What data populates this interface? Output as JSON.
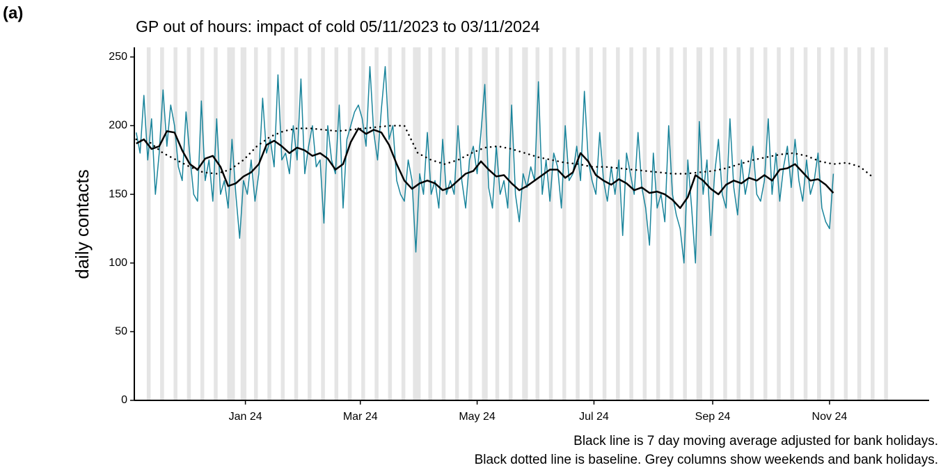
{
  "chart_data": {
    "type": "line",
    "panel_label": "(a)",
    "title": "GP out of hours: impact of cold 05/11/2023 to 03/11/2024",
    "y_label": "daily contacts",
    "caption": [
      "Black line is 7 day moving average adjusted for bank holidays.",
      "Black dotted line is baseline. Grey columns show weekends and bank holidays."
    ],
    "xlim": [
      -1,
      414
    ],
    "ylim": [
      0,
      257
    ],
    "xticks": [
      {
        "value": 57,
        "label": "Jan 24"
      },
      {
        "value": 117,
        "label": "Mar 24"
      },
      {
        "value": 178,
        "label": "May 24"
      },
      {
        "value": 239,
        "label": "Jul 24"
      },
      {
        "value": 301,
        "label": "Sep 24"
      },
      {
        "value": 362,
        "label": "Nov 24"
      }
    ],
    "yticks": [
      0,
      50,
      100,
      150,
      200,
      250
    ],
    "shade_color": "#e5e5e5",
    "shaded_days": [
      [
        6,
        7
      ],
      [
        13,
        14
      ],
      [
        20,
        21
      ],
      [
        27,
        28
      ],
      [
        34,
        35
      ],
      [
        41,
        42
      ],
      [
        48,
        51
      ],
      [
        55,
        57
      ],
      [
        62,
        63
      ],
      [
        69,
        70
      ],
      [
        76,
        77
      ],
      [
        83,
        84
      ],
      [
        90,
        91
      ],
      [
        97,
        98
      ],
      [
        104,
        105
      ],
      [
        111,
        112
      ],
      [
        118,
        119
      ],
      [
        125,
        126
      ],
      [
        132,
        133
      ],
      [
        139,
        140
      ],
      [
        145,
        148
      ],
      [
        153,
        154
      ],
      [
        160,
        161
      ],
      [
        167,
        168
      ],
      [
        174,
        175
      ],
      [
        181,
        183
      ],
      [
        188,
        189
      ],
      [
        195,
        196
      ],
      [
        202,
        204
      ],
      [
        209,
        210
      ],
      [
        216,
        217
      ],
      [
        223,
        224
      ],
      [
        230,
        231
      ],
      [
        237,
        238
      ],
      [
        244,
        245
      ],
      [
        251,
        252
      ],
      [
        258,
        259
      ],
      [
        265,
        266
      ],
      [
        272,
        273
      ],
      [
        279,
        280
      ],
      [
        286,
        287
      ],
      [
        293,
        295
      ],
      [
        300,
        301
      ],
      [
        307,
        308
      ],
      [
        314,
        315
      ],
      [
        321,
        322
      ],
      [
        328,
        329
      ],
      [
        335,
        336
      ],
      [
        342,
        343
      ],
      [
        349,
        350
      ],
      [
        356,
        357
      ],
      [
        363,
        364
      ],
      [
        370,
        371
      ],
      [
        377,
        378
      ],
      [
        384,
        385
      ],
      [
        391,
        392
      ]
    ],
    "series": [
      {
        "color": "#19849b",
        "style": "solid",
        "width": 1.5,
        "x": [
          0,
          2,
          4,
          6,
          8,
          10,
          12,
          14,
          16,
          18,
          20,
          22,
          24,
          26,
          28,
          30,
          32,
          34,
          36,
          38,
          40,
          42,
          44,
          46,
          48,
          50,
          52,
          54,
          56,
          58,
          60,
          62,
          64,
          66,
          68,
          70,
          72,
          74,
          76,
          78,
          80,
          82,
          84,
          86,
          88,
          90,
          92,
          94,
          96,
          98,
          100,
          102,
          104,
          106,
          108,
          110,
          112,
          114,
          116,
          118,
          120,
          122,
          124,
          126,
          128,
          130,
          132,
          134,
          136,
          138,
          140,
          142,
          144,
          146,
          148,
          150,
          152,
          154,
          156,
          158,
          160,
          162,
          164,
          166,
          168,
          170,
          172,
          174,
          176,
          178,
          180,
          182,
          184,
          186,
          188,
          190,
          192,
          194,
          196,
          198,
          200,
          202,
          204,
          206,
          208,
          210,
          212,
          214,
          216,
          218,
          220,
          222,
          224,
          226,
          228,
          230,
          232,
          234,
          236,
          238,
          240,
          242,
          244,
          246,
          248,
          250,
          252,
          254,
          256,
          258,
          260,
          262,
          264,
          266,
          268,
          270,
          272,
          274,
          276,
          278,
          280,
          282,
          284,
          286,
          288,
          290,
          292,
          294,
          296,
          298,
          300,
          302,
          304,
          306,
          308,
          310,
          312,
          314,
          316,
          318,
          320,
          322,
          324,
          326,
          328,
          330,
          332,
          334,
          336,
          338,
          340,
          342,
          344,
          346,
          348,
          350,
          352,
          354,
          356,
          358,
          360,
          362,
          364
        ],
        "values": [
          195,
          180,
          222,
          175,
          205,
          150,
          180,
          226,
          185,
          215,
          200,
          170,
          160,
          210,
          178,
          150,
          145,
          218,
          160,
          175,
          145,
          205,
          150,
          160,
          140,
          190,
          150,
          118,
          160,
          150,
          175,
          145,
          165,
          220,
          180,
          190,
          170,
          237,
          175,
          180,
          165,
          200,
          175,
          234,
          165,
          185,
          200,
          170,
          175,
          129,
          200,
          175,
          165,
          215,
          140,
          190,
          200,
          210,
          215,
          205,
          185,
          243,
          195,
          175,
          212,
          243,
          190,
          200,
          160,
          150,
          145,
          175,
          160,
          108,
          165,
          150,
          195,
          150,
          160,
          140,
          190,
          150,
          160,
          150,
          200,
          160,
          140,
          175,
          185,
          165,
          195,
          230,
          155,
          140,
          185,
          150,
          160,
          140,
          215,
          150,
          130,
          165,
          155,
          170,
          160,
          232,
          150,
          175,
          145,
          180,
          170,
          140,
          200,
          160,
          165,
          185,
          160,
          225,
          175,
          160,
          150,
          195,
          160,
          145,
          170,
          150,
          175,
          120,
          180,
          165,
          150,
          195,
          155,
          140,
          113,
          180,
          140,
          150,
          130,
          200,
          150,
          135,
          125,
          100,
          175,
          140,
          100,
          203,
          150,
          175,
          120,
          165,
          190,
          150,
          140,
          205,
          155,
          135,
          175,
          150,
          165,
          185,
          150,
          145,
          160,
          205,
          150,
          180,
          145,
          170,
          185,
          155,
          190,
          160,
          145,
          175,
          150,
          160,
          180,
          140,
          130,
          125,
          165
        ]
      },
      {
        "color": "#000000",
        "style": "solid",
        "width": 2.5,
        "x": [
          0,
          4,
          8,
          12,
          16,
          20,
          24,
          28,
          32,
          36,
          40,
          44,
          48,
          52,
          56,
          60,
          64,
          68,
          72,
          76,
          80,
          84,
          88,
          92,
          96,
          100,
          104,
          108,
          112,
          116,
          120,
          124,
          128,
          132,
          136,
          140,
          144,
          148,
          152,
          156,
          160,
          164,
          168,
          172,
          176,
          180,
          184,
          188,
          192,
          196,
          200,
          204,
          208,
          212,
          216,
          220,
          224,
          228,
          232,
          236,
          240,
          244,
          248,
          252,
          256,
          260,
          264,
          268,
          272,
          276,
          280,
          284,
          288,
          292,
          296,
          300,
          304,
          308,
          312,
          316,
          320,
          324,
          328,
          332,
          336,
          340,
          344,
          348,
          352,
          356,
          360,
          364
        ],
        "values": [
          187,
          190,
          183,
          185,
          196,
          195,
          182,
          172,
          168,
          176,
          178,
          170,
          156,
          158,
          163,
          166,
          172,
          186,
          189,
          185,
          180,
          184,
          182,
          178,
          180,
          176,
          168,
          172,
          188,
          198,
          194,
          197,
          195,
          186,
          172,
          160,
          154,
          158,
          160,
          158,
          153,
          155,
          160,
          165,
          167,
          174,
          168,
          163,
          164,
          158,
          153,
          156,
          160,
          164,
          168,
          168,
          162,
          166,
          180,
          174,
          164,
          160,
          157,
          161,
          158,
          153,
          155,
          151,
          152,
          150,
          146,
          140,
          148,
          164,
          160,
          154,
          150,
          157,
          160,
          158,
          162,
          160,
          164,
          160,
          168,
          169,
          172,
          166,
          160,
          161,
          157,
          151
        ]
      },
      {
        "color": "#000000",
        "style": "dotted",
        "width": 2.5,
        "x": [
          0,
          7,
          14,
          21,
          28,
          35,
          42,
          49,
          56,
          63,
          70,
          77,
          84,
          91,
          98,
          105,
          112,
          119,
          126,
          133,
          140,
          147,
          154,
          161,
          168,
          175,
          182,
          189,
          196,
          203,
          210,
          217,
          224,
          231,
          238,
          245,
          252,
          259,
          266,
          273,
          280,
          287,
          294,
          301,
          308,
          315,
          322,
          329,
          336,
          343,
          350,
          357,
          364,
          371,
          378,
          385
        ],
        "values": [
          190,
          188,
          180,
          175,
          170,
          166,
          165,
          168,
          175,
          185,
          192,
          196,
          198,
          198,
          197,
          196,
          197,
          198,
          199,
          200,
          200,
          180,
          175,
          172,
          175,
          180,
          184,
          185,
          183,
          180,
          177,
          175,
          173,
          172,
          170,
          170,
          169,
          168,
          167,
          166,
          165,
          165,
          166,
          167,
          169,
          172,
          175,
          177,
          179,
          180,
          178,
          174,
          172,
          173,
          170,
          162
        ]
      }
    ]
  }
}
